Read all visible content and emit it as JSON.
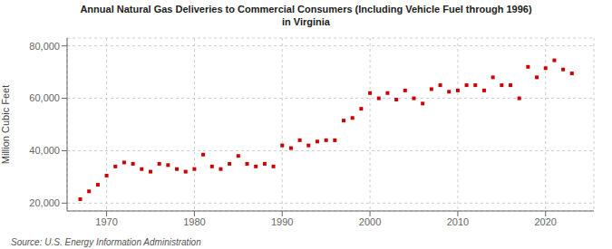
{
  "chart_data": {
    "type": "scatter",
    "title": "Annual Natural Gas Deliveries to Commercial Consumers (Including Vehicle Fuel through 1996)\nin Virginia",
    "y_label": "Million Cubic Feet",
    "source": "Source: U.S. Energy Information Administration",
    "x": [
      1967,
      1968,
      1969,
      1970,
      1971,
      1972,
      1973,
      1974,
      1975,
      1976,
      1977,
      1978,
      1979,
      1980,
      1981,
      1982,
      1983,
      1984,
      1985,
      1986,
      1987,
      1988,
      1989,
      1990,
      1991,
      1992,
      1993,
      1994,
      1995,
      1996,
      1997,
      1998,
      1999,
      2000,
      2001,
      2002,
      2003,
      2004,
      2005,
      2006,
      2007,
      2008,
      2009,
      2010,
      2011,
      2012,
      2013,
      2014,
      2015,
      2016,
      2017,
      2018,
      2019,
      2020,
      2021,
      2022,
      2023
    ],
    "values": [
      21500,
      24500,
      27000,
      30500,
      34000,
      35500,
      35000,
      33000,
      32000,
      35000,
      34500,
      33000,
      32000,
      33000,
      38500,
      34000,
      33000,
      35000,
      38000,
      35000,
      34000,
      35000,
      34000,
      42000,
      41000,
      44000,
      42000,
      43500,
      44000,
      44000,
      51500,
      52500,
      56000,
      62000,
      60000,
      62000,
      59500,
      63000,
      60000,
      58000,
      63500,
      65000,
      62500,
      63000,
      65000,
      65000,
      63000,
      68000,
      65000,
      65000,
      60000,
      72000,
      68000,
      71500,
      74500,
      71000,
      69500
    ],
    "color": "#cc0000",
    "marker": "square",
    "xlim": [
      1965.5,
      2025.5
    ],
    "xticks": [
      1970,
      1980,
      1990,
      2000,
      2010,
      2020
    ],
    "ylim": [
      17000,
      83000
    ],
    "yticks": [
      {
        "value": 20000,
        "label": "20,000"
      },
      {
        "value": 40000,
        "label": "40,000"
      },
      {
        "value": 60000,
        "label": "60,000"
      },
      {
        "value": 80000,
        "label": "80,000"
      }
    ],
    "grid": true
  }
}
